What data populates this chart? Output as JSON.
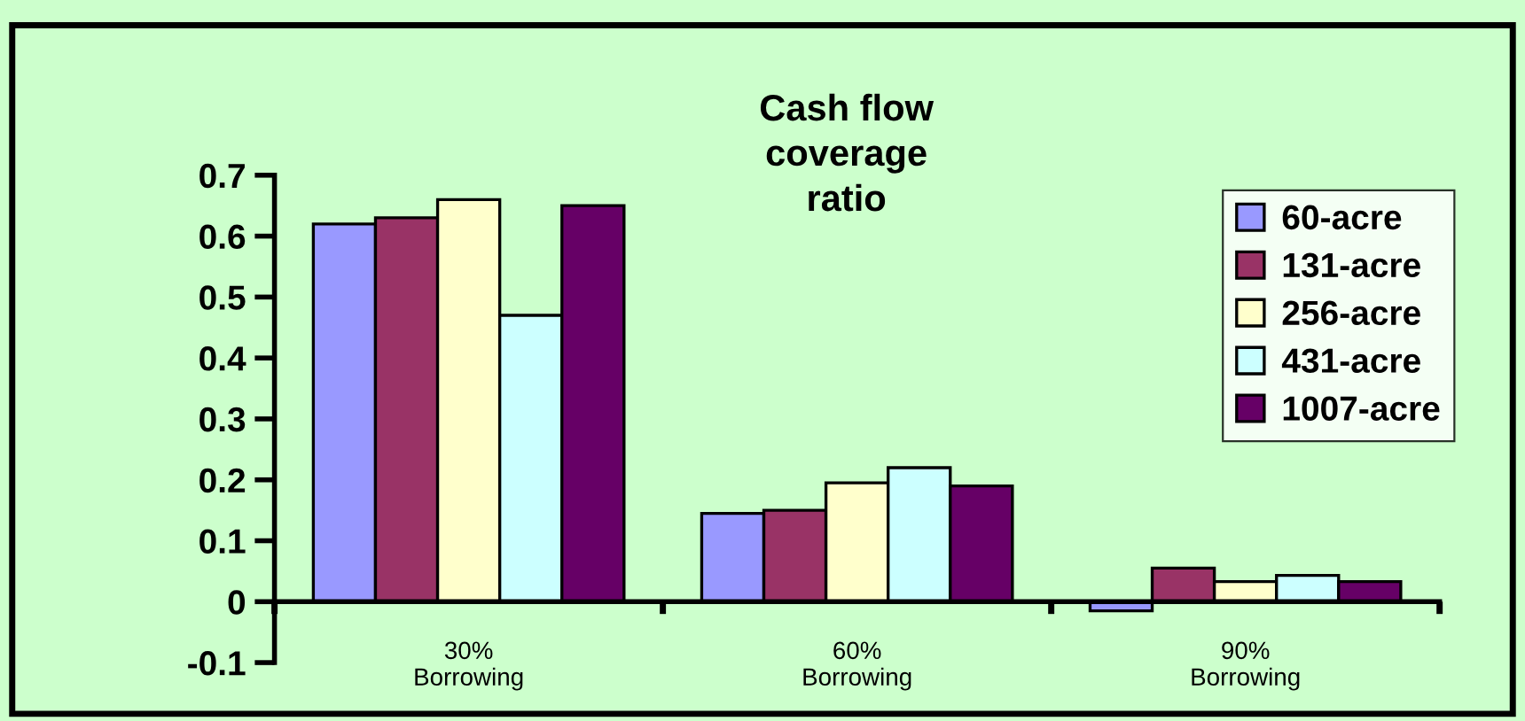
{
  "chart_data": {
    "type": "bar",
    "title": "Cash flow\ncoverage\nratio",
    "categories": [
      "30%\nBorrowing",
      "60%\nBorrowing",
      "90%\nBorrowing"
    ],
    "series": [
      {
        "name": "60-acre",
        "color": "#9999ff",
        "values": [
          0.62,
          0.145,
          -0.015
        ]
      },
      {
        "name": "131-acre",
        "color": "#993366",
        "values": [
          0.63,
          0.15,
          0.055
        ]
      },
      {
        "name": "256-acre",
        "color": "#ffffcc",
        "values": [
          0.66,
          0.195,
          0.033
        ]
      },
      {
        "name": "431-acre",
        "color": "#ccffff",
        "values": [
          0.47,
          0.22,
          0.043
        ]
      },
      {
        "name": "1007-acre",
        "color": "#660066",
        "values": [
          0.65,
          0.19,
          0.033
        ]
      }
    ],
    "ylim": [
      -0.1,
      0.7
    ],
    "yticks": [
      {
        "value": -0.1,
        "label": "-0.1"
      },
      0,
      0.1,
      0.2,
      0.3,
      0.4,
      0.5,
      0.6,
      0.7
    ],
    "grid": false,
    "legend": "right"
  }
}
